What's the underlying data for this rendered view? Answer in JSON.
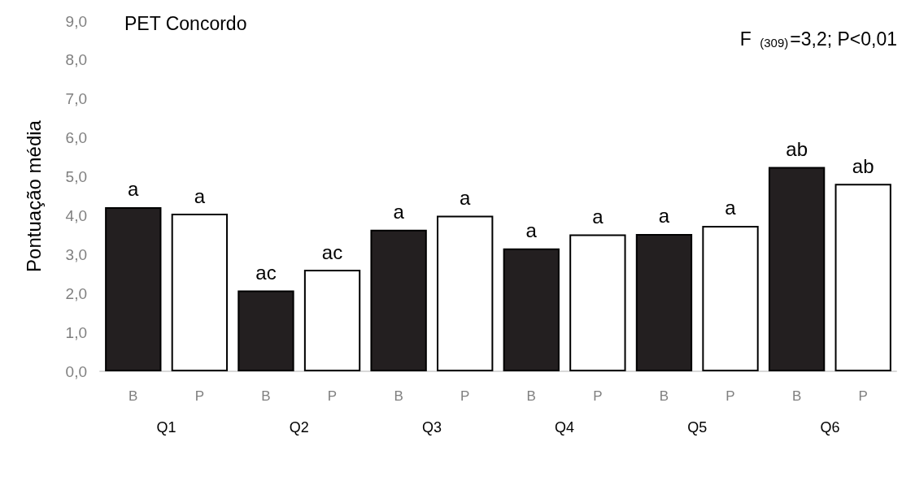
{
  "chart_data": {
    "type": "bar",
    "title": "PET Concordo",
    "ylabel": "Pontuação média",
    "categories": [
      "B",
      "P",
      "B",
      "P",
      "B",
      "P",
      "B",
      "P",
      "B",
      "P",
      "B",
      "P"
    ],
    "values": [
      4.22,
      4.05,
      2.08,
      2.61,
      3.64,
      4.0,
      3.16,
      3.52,
      3.53,
      3.74,
      5.25,
      4.82
    ],
    "colors": [
      "#231f20",
      "#ffffff",
      "#231f20",
      "#ffffff",
      "#231f20",
      "#ffffff",
      "#231f20",
      "#ffffff",
      "#231f20",
      "#ffffff",
      "#231f20",
      "#ffffff"
    ],
    "value_labels": [
      "a",
      "a",
      "ac",
      "ac",
      "a",
      "a",
      "a",
      "a",
      "a",
      "a",
      "ab",
      "ab"
    ],
    "annotations": [
      "F $_{(309)}$=3,2; P<0,01",
      "Q1",
      "Q2",
      "Q3",
      "Q4",
      "Q5",
      "Q6"
    ],
    "ylim": [
      0,
      9
    ],
    "yticks": [
      {
        "value": 0,
        "label": "0,0"
      },
      {
        "value": 1,
        "label": "1,0"
      },
      {
        "value": 2,
        "label": "2,0"
      },
      {
        "value": 3,
        "label": "3,0"
      },
      {
        "value": 4,
        "label": "4,0"
      },
      {
        "value": 5,
        "label": "5,0"
      },
      {
        "value": 6,
        "label": "6,0"
      },
      {
        "value": 7,
        "label": "7,0"
      },
      {
        "value": 8,
        "label": "8,0"
      },
      {
        "value": 9,
        "label": "9,0"
      }
    ],
    "grid": false
  }
}
